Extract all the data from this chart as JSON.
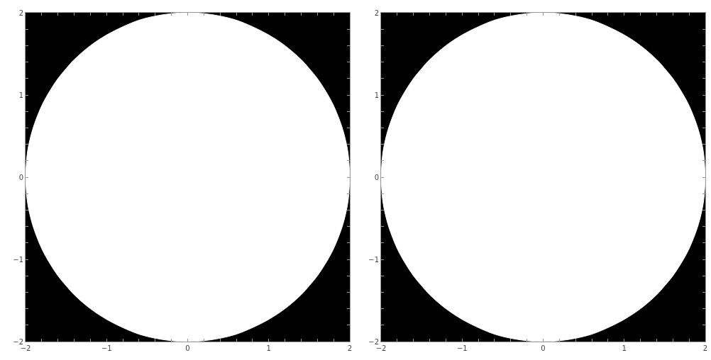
{
  "chart_data": [
    {
      "type": "area",
      "grid": false,
      "xlim": [
        -2,
        2
      ],
      "ylim": [
        -2,
        2
      ],
      "xticks": [
        {
          "value": -2,
          "label": "−2"
        },
        {
          "value": -1.8,
          "label": null
        },
        {
          "value": -1.6,
          "label": null
        },
        {
          "value": -1.4,
          "label": null
        },
        {
          "value": -1.2,
          "label": null
        },
        {
          "value": -1,
          "label": "−1"
        },
        {
          "value": -0.8,
          "label": null
        },
        {
          "value": -0.6,
          "label": null
        },
        {
          "value": -0.4,
          "label": null
        },
        {
          "value": -0.2,
          "label": null
        },
        0,
        {
          "value": 0.2,
          "label": null
        },
        {
          "value": 0.4,
          "label": null
        },
        {
          "value": 0.6,
          "label": null
        },
        {
          "value": 0.8,
          "label": null
        },
        1,
        {
          "value": 1.2,
          "label": null
        },
        {
          "value": 1.4,
          "label": null
        },
        {
          "value": 1.6,
          "label": null
        },
        {
          "value": 1.8,
          "label": null
        },
        2
      ],
      "yticks": [
        {
          "value": -2,
          "label": "−2"
        },
        {
          "value": -1.8,
          "label": null
        },
        {
          "value": -1.6,
          "label": null
        },
        {
          "value": -1.4,
          "label": null
        },
        {
          "value": -1.2,
          "label": null
        },
        {
          "value": -1,
          "label": "−1"
        },
        {
          "value": -0.8,
          "label": null
        },
        {
          "value": -0.6,
          "label": null
        },
        {
          "value": -0.4,
          "label": null
        },
        {
          "value": -0.2,
          "label": null
        },
        0,
        {
          "value": 0.2,
          "label": null
        },
        {
          "value": 0.4,
          "label": null
        },
        {
          "value": 0.6,
          "label": null
        },
        {
          "value": 0.8,
          "label": null
        },
        1,
        {
          "value": 1.2,
          "label": null
        },
        {
          "value": 1.4,
          "label": null
        },
        {
          "value": 1.6,
          "label": null
        },
        {
          "value": 1.8,
          "label": null
        },
        2
      ],
      "x": [
        -2,
        -1.98,
        -1.95,
        -1.9,
        -1.8,
        -1.7,
        -1.6,
        -1.5,
        -1.4,
        -1.2,
        -1,
        -0.8,
        -0.6,
        -0.4,
        -0.2,
        0,
        0.2,
        0.4,
        0.6,
        0.8,
        1,
        1.2,
        1.4,
        1.5,
        1.6,
        1.7,
        1.8,
        1.9,
        1.95,
        1.98,
        2
      ],
      "series": [
        {
          "color": "#ffffff",
          "values": [
            0,
            0.28,
            0.44,
            0.62,
            0.87,
            1.05,
            1.2,
            1.32,
            1.43,
            1.6,
            1.73,
            1.83,
            1.91,
            1.96,
            1.99,
            2,
            1.99,
            1.96,
            1.91,
            1.83,
            1.73,
            1.6,
            1.43,
            1.32,
            1.2,
            1.05,
            0.87,
            0.62,
            0.44,
            0.28,
            0
          ]
        },
        {
          "color": "#ffffff",
          "values": [
            0,
            -0.28,
            -0.44,
            -0.62,
            -0.87,
            -1.05,
            -1.2,
            -1.32,
            -1.43,
            -1.6,
            -1.73,
            -1.83,
            -1.91,
            -1.96,
            -1.99,
            -2,
            -1.99,
            -1.96,
            -1.91,
            -1.83,
            -1.73,
            -1.6,
            -1.43,
            -1.32,
            -1.2,
            -1.05,
            -0.87,
            -0.62,
            -0.44,
            -0.28,
            0
          ]
        }
      ]
    },
    {
      "type": "area",
      "grid": false,
      "xlim": [
        -2,
        2
      ],
      "ylim": [
        -2,
        2
      ],
      "xticks": [
        {
          "value": -2,
          "label": "−2"
        },
        {
          "value": -1.8,
          "label": null
        },
        {
          "value": -1.6,
          "label": null
        },
        {
          "value": -1.4,
          "label": null
        },
        {
          "value": -1.2,
          "label": null
        },
        {
          "value": -1,
          "label": "−1"
        },
        {
          "value": -0.8,
          "label": null
        },
        {
          "value": -0.6,
          "label": null
        },
        {
          "value": -0.4,
          "label": null
        },
        {
          "value": -0.2,
          "label": null
        },
        0,
        {
          "value": 0.2,
          "label": null
        },
        {
          "value": 0.4,
          "label": null
        },
        {
          "value": 0.6,
          "label": null
        },
        {
          "value": 0.8,
          "label": null
        },
        1,
        {
          "value": 1.2,
          "label": null
        },
        {
          "value": 1.4,
          "label": null
        },
        {
          "value": 1.6,
          "label": null
        },
        {
          "value": 1.8,
          "label": null
        },
        2
      ],
      "yticks": [
        {
          "value": -2,
          "label": "−2"
        },
        {
          "value": -1.8,
          "label": null
        },
        {
          "value": -1.6,
          "label": null
        },
        {
          "value": -1.4,
          "label": null
        },
        {
          "value": -1.2,
          "label": null
        },
        {
          "value": -1,
          "label": "−1"
        },
        {
          "value": -0.8,
          "label": null
        },
        {
          "value": -0.6,
          "label": null
        },
        {
          "value": -0.4,
          "label": null
        },
        {
          "value": -0.2,
          "label": null
        },
        0,
        {
          "value": 0.2,
          "label": null
        },
        {
          "value": 0.4,
          "label": null
        },
        {
          "value": 0.6,
          "label": null
        },
        {
          "value": 0.8,
          "label": null
        },
        1,
        {
          "value": 1.2,
          "label": null
        },
        {
          "value": 1.4,
          "label": null
        },
        {
          "value": 1.6,
          "label": null
        },
        {
          "value": 1.8,
          "label": null
        },
        2
      ],
      "x": [
        -2,
        -1.98,
        -1.95,
        -1.9,
        -1.8,
        -1.7,
        -1.6,
        -1.5,
        -1.4,
        -1.2,
        -1,
        -0.8,
        -0.6,
        -0.4,
        -0.2,
        0,
        0.2,
        0.4,
        0.6,
        0.8,
        1,
        1.2,
        1.4,
        1.5,
        1.6,
        1.7,
        1.8,
        1.9,
        1.95,
        1.98,
        2
      ],
      "series": [
        {
          "color": "#ffffff",
          "values": [
            0,
            0.28,
            0.44,
            0.62,
            0.87,
            1.05,
            1.2,
            1.32,
            1.43,
            1.6,
            1.73,
            1.83,
            1.91,
            1.96,
            1.99,
            2,
            1.99,
            1.96,
            1.91,
            1.83,
            1.73,
            1.6,
            1.43,
            1.32,
            1.2,
            1.05,
            0.87,
            0.62,
            0.44,
            0.28,
            0
          ]
        },
        {
          "color": "#ffffff",
          "values": [
            0,
            -0.28,
            -0.44,
            -0.62,
            -0.87,
            -1.05,
            -1.2,
            -1.32,
            -1.43,
            -1.6,
            -1.73,
            -1.83,
            -1.91,
            -1.96,
            -1.99,
            -2,
            -1.99,
            -1.96,
            -1.91,
            -1.83,
            -1.73,
            -1.6,
            -1.43,
            -1.32,
            -1.2,
            -1.05,
            -0.87,
            -0.62,
            -0.44,
            -0.28,
            0
          ]
        }
      ]
    }
  ]
}
